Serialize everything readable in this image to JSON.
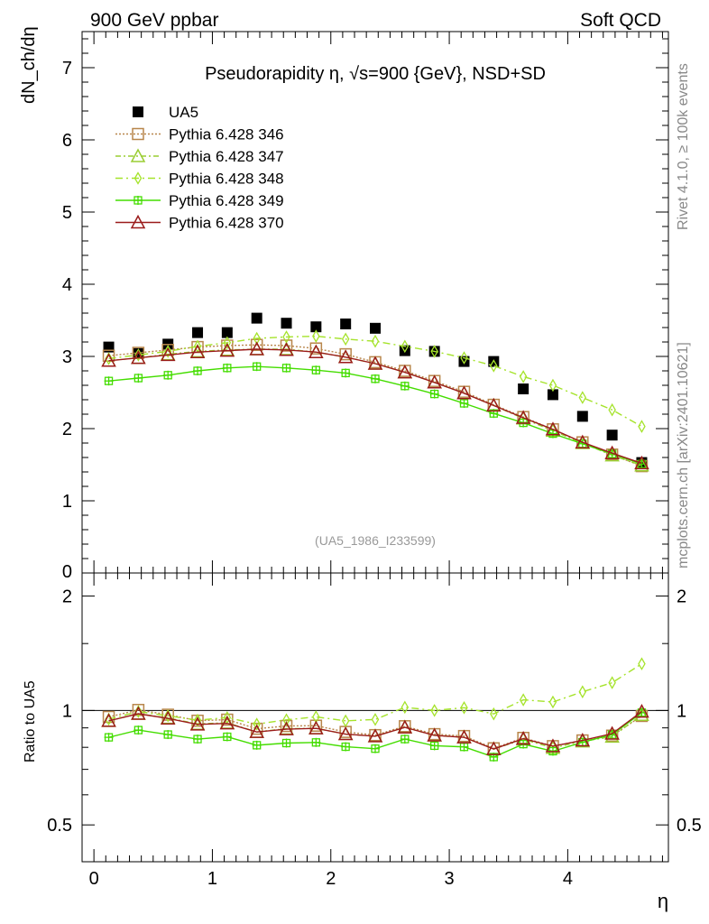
{
  "header": {
    "left": "900 GeV ppbar",
    "right": "Soft QCD"
  },
  "side_text": {
    "rivet": "Rivet 4.1.0, ≥ 100k events",
    "mcplots": "mcplots.cern.ch [arXiv:2401.10621]"
  },
  "chart_data": {
    "type": "scatter",
    "title": "Pseudorapidity η, √s=900 {GeV}, NSD+SD",
    "ylabel_top": "dN_ch/dη",
    "ylabel_ratio": "Ratio to UA5",
    "xlabel": "η",
    "watermark": "(UA5_1986_I233599)",
    "xlim": [
      -0.1,
      4.85
    ],
    "ylim_top": [
      0,
      7.5
    ],
    "ylim_ratio": [
      0.4,
      2.3
    ],
    "x_ticks": [
      "0",
      "1",
      "2",
      "3",
      "4"
    ],
    "y_ticks_top": [
      "0",
      "1",
      "2",
      "3",
      "4",
      "5",
      "6",
      "7"
    ],
    "y_ticks_ratio": [
      "0.5",
      "1",
      "2"
    ],
    "x": [
      0.125,
      0.375,
      0.625,
      0.875,
      1.125,
      1.375,
      1.625,
      1.875,
      2.125,
      2.375,
      2.625,
      2.875,
      3.125,
      3.375,
      3.625,
      3.875,
      4.125,
      4.375,
      4.625
    ],
    "reference": {
      "name": "UA5",
      "values": [
        3.13,
        3.04,
        3.17,
        3.33,
        3.33,
        3.53,
        3.46,
        3.41,
        3.45,
        3.39,
        3.08,
        3.07,
        2.93,
        2.93,
        2.55,
        2.47,
        2.17,
        1.91,
        1.53
      ]
    },
    "series": [
      {
        "name": "Pythia 6.428 346",
        "color": "#b8864b",
        "marker": "square",
        "values": [
          3.01,
          3.05,
          3.09,
          3.13,
          3.15,
          3.16,
          3.15,
          3.11,
          3.03,
          2.92,
          2.8,
          2.66,
          2.51,
          2.33,
          2.16,
          1.99,
          1.81,
          1.64,
          1.48
        ]
      },
      {
        "name": "Pythia 6.428 347",
        "color": "#9acd32",
        "marker": "triangle",
        "values": [
          2.94,
          2.98,
          3.03,
          3.07,
          3.09,
          3.1,
          3.1,
          3.06,
          2.99,
          2.9,
          2.78,
          2.64,
          2.49,
          2.32,
          2.14,
          1.97,
          1.8,
          1.63,
          1.49
        ]
      },
      {
        "name": "Pythia 6.428 348",
        "color": "#a5e32b",
        "marker": "diamond",
        "values": [
          2.97,
          3.02,
          3.07,
          3.14,
          3.19,
          3.25,
          3.27,
          3.28,
          3.24,
          3.21,
          3.14,
          3.07,
          2.98,
          2.87,
          2.72,
          2.6,
          2.43,
          2.26,
          2.03
        ]
      },
      {
        "name": "Pythia 6.428 349",
        "color": "#44dd00",
        "marker": "plus",
        "values": [
          2.66,
          2.7,
          2.74,
          2.8,
          2.84,
          2.86,
          2.84,
          2.81,
          2.77,
          2.69,
          2.59,
          2.48,
          2.35,
          2.21,
          2.08,
          1.93,
          1.79,
          1.65,
          1.51
        ]
      },
      {
        "name": "Pythia 6.428 370",
        "color": "#9b1b1b",
        "marker": "triangle",
        "values": [
          2.94,
          2.98,
          3.02,
          3.06,
          3.08,
          3.1,
          3.09,
          3.06,
          2.99,
          2.9,
          2.78,
          2.64,
          2.49,
          2.32,
          2.15,
          1.99,
          1.81,
          1.66,
          1.52
        ]
      }
    ]
  }
}
